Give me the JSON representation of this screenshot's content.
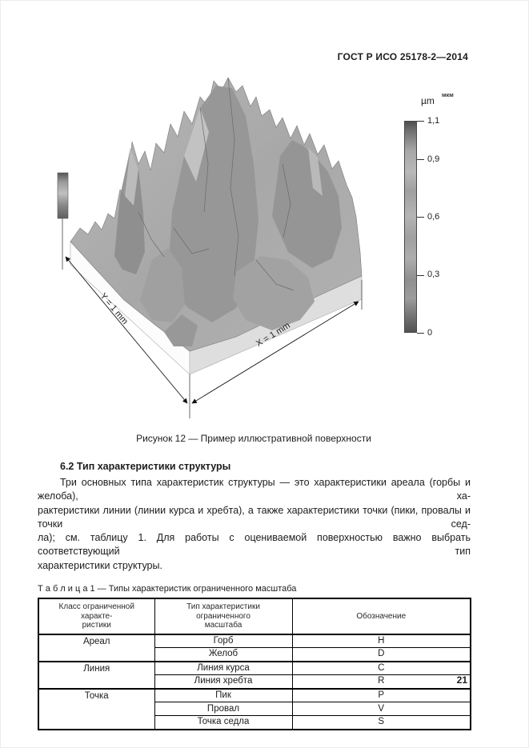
{
  "page": {
    "header": "ГОСТ Р ИСО 25178-2—2014",
    "page_number": "21"
  },
  "figure": {
    "caption": "Рисунок 12 — Пример иллюстративной поверхности",
    "y_label": "Y = 1 mm",
    "x_label": "X = 1 mm",
    "scalebar": {
      "unit_latin": "µm",
      "unit_cyrillic": "мкм",
      "ticks": [
        "1,1",
        "0,9",
        "0,6",
        "0,3",
        "0"
      ]
    }
  },
  "section": {
    "heading": "6.2 Тип характеристики структуры",
    "paragraph_lines": [
      "Три основных типа характеристик структуры — это характеристики ареала (горбы и желоба), ха-",
      "рактеристики линии (линии курса и хребта), а также характеристики точки (пики, провалы и точки сед-",
      "ла); см. таблицу 1. Для работы с оцениваемой поверхностью важно выбрать соответствующий тип",
      "характеристики структуры."
    ]
  },
  "table": {
    "caption": "Т а б л и ц а  1 — Типы характеристик ограниченного масштаба",
    "headers": [
      [
        "Класс ограниченной характе-",
        "ристики"
      ],
      [
        "Тип характеристики ограниченного",
        "масштаба"
      ],
      [
        "Обозначение"
      ]
    ],
    "groups": [
      {
        "class": "Ареал",
        "rows": [
          [
            "Горб",
            "H"
          ],
          [
            "Желоб",
            "D"
          ]
        ]
      },
      {
        "class": "Линия",
        "rows": [
          [
            "Линия курса",
            "C"
          ],
          [
            "Линия хребта",
            "R"
          ]
        ]
      },
      {
        "class": "Точка",
        "rows": [
          [
            "Пик",
            "P"
          ],
          [
            "Провал",
            "V"
          ],
          [
            "Точка седла",
            "S"
          ]
        ]
      }
    ]
  }
}
